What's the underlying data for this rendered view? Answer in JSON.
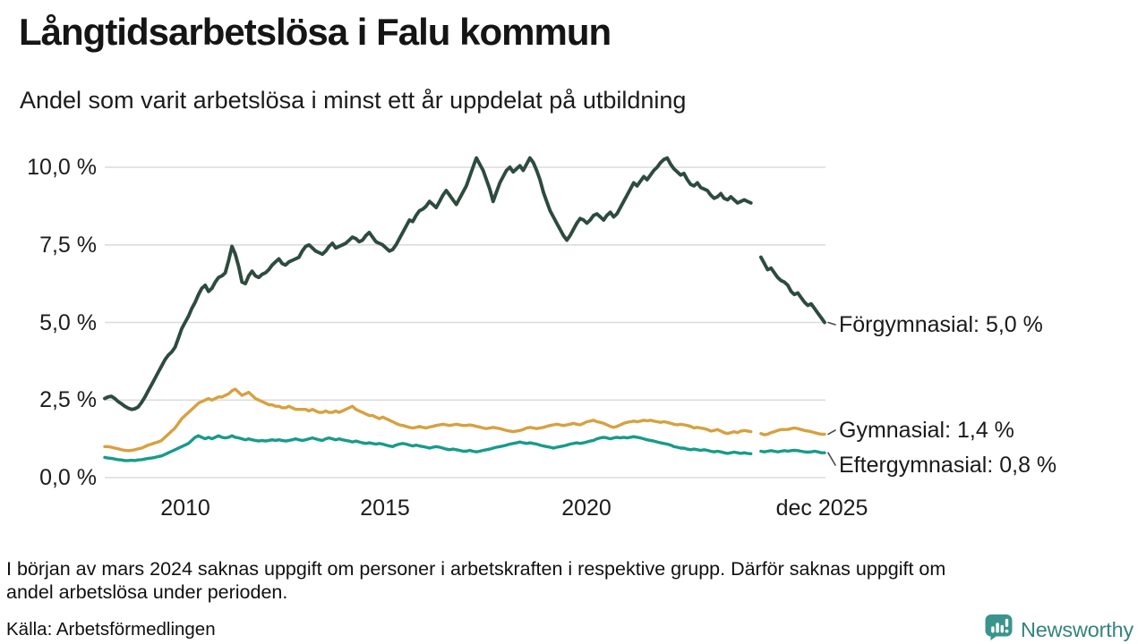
{
  "header": {
    "title": "Långtidsarbetslösa i Falu kommun",
    "subtitle": "Andel som varit arbetslösa i minst ett år uppdelat på utbildning"
  },
  "chart_data": {
    "type": "line",
    "title": "Långtidsarbetslösa i Falu kommun",
    "subtitle": "Andel som varit arbetslösa i minst ett år uppdelat på utbildning",
    "unit": "%",
    "frequency": "monthly",
    "x_start_month": "2008-01",
    "x_end_month": "2025-12",
    "missing_data_months": [
      "2024-03",
      "2024-04"
    ],
    "grid": "horizontal",
    "ylim": [
      0,
      10.5
    ],
    "y_ticks": [
      {
        "value": 0,
        "label": "0,0 %"
      },
      {
        "value": 2.5,
        "label": "2,5 %"
      },
      {
        "value": 5,
        "label": "5,0 %"
      },
      {
        "value": 7.5,
        "label": "7,5 %"
      },
      {
        "value": 10,
        "label": "10,0 %"
      }
    ],
    "x_ticks": [
      {
        "month_index": 24,
        "label": "2010"
      },
      {
        "month_index": 84,
        "label": "2015"
      },
      {
        "month_index": 144,
        "label": "2020"
      },
      {
        "month_index": 215,
        "label": "dec 2025"
      }
    ],
    "series": [
      {
        "name": "Förgymnasial",
        "color": "#2d4b3f",
        "end_value": 5.0,
        "end_label": "Förgymnasial: 5,0 %",
        "values": [
          2.55,
          2.6,
          2.62,
          2.55,
          2.45,
          2.38,
          2.3,
          2.24,
          2.2,
          2.22,
          2.28,
          2.42,
          2.6,
          2.8,
          3.0,
          3.2,
          3.4,
          3.6,
          3.8,
          3.95,
          4.05,
          4.2,
          4.5,
          4.8,
          5.0,
          5.2,
          5.45,
          5.65,
          5.9,
          6.1,
          6.2,
          6.0,
          6.1,
          6.3,
          6.45,
          6.5,
          6.6,
          7.0,
          7.45,
          7.2,
          6.8,
          6.3,
          6.25,
          6.5,
          6.65,
          6.5,
          6.45,
          6.55,
          6.6,
          6.7,
          6.85,
          6.95,
          7.05,
          6.9,
          6.85,
          6.95,
          7.0,
          7.05,
          7.1,
          7.3,
          7.45,
          7.5,
          7.4,
          7.3,
          7.25,
          7.2,
          7.3,
          7.45,
          7.55,
          7.4,
          7.45,
          7.5,
          7.55,
          7.65,
          7.75,
          7.7,
          7.6,
          7.65,
          7.8,
          7.9,
          7.75,
          7.6,
          7.55,
          7.5,
          7.4,
          7.3,
          7.35,
          7.5,
          7.7,
          7.9,
          8.1,
          8.3,
          8.25,
          8.45,
          8.6,
          8.65,
          8.75,
          8.9,
          8.8,
          8.7,
          8.9,
          9.1,
          9.25,
          9.1,
          8.95,
          8.8,
          9.0,
          9.2,
          9.4,
          9.7,
          10.0,
          10.3,
          10.1,
          9.9,
          9.6,
          9.3,
          8.9,
          9.2,
          9.5,
          9.7,
          9.9,
          10.0,
          9.85,
          9.95,
          10.05,
          9.9,
          10.1,
          10.3,
          10.15,
          9.9,
          9.6,
          9.2,
          8.9,
          8.6,
          8.4,
          8.2,
          8.0,
          7.8,
          7.65,
          7.8,
          8.0,
          8.2,
          8.35,
          8.3,
          8.2,
          8.3,
          8.45,
          8.5,
          8.4,
          8.3,
          8.45,
          8.55,
          8.4,
          8.5,
          8.7,
          8.9,
          9.1,
          9.3,
          9.5,
          9.4,
          9.55,
          9.7,
          9.6,
          9.75,
          9.9,
          10.0,
          10.15,
          10.25,
          10.3,
          10.1,
          9.95,
          9.85,
          9.75,
          9.8,
          9.6,
          9.45,
          9.4,
          9.5,
          9.35,
          9.3,
          9.25,
          9.1,
          9.0,
          9.05,
          9.15,
          9.0,
          8.95,
          9.05,
          8.95,
          8.85,
          8.9,
          8.95,
          8.9,
          8.85,
          null,
          null,
          7.1,
          6.9,
          6.7,
          6.75,
          6.6,
          6.45,
          6.35,
          6.3,
          6.2,
          6.0,
          5.9,
          5.95,
          5.8,
          5.65,
          5.55,
          5.6,
          5.45,
          5.3,
          5.15,
          5.0
        ]
      },
      {
        "name": "Gymnasial",
        "color": "#d7a13f",
        "end_value": 1.4,
        "end_label": "Gymnasial: 1,4 %",
        "values": [
          1.0,
          1.0,
          0.98,
          0.95,
          0.93,
          0.9,
          0.88,
          0.87,
          0.88,
          0.9,
          0.93,
          0.95,
          1.0,
          1.05,
          1.08,
          1.12,
          1.15,
          1.2,
          1.3,
          1.4,
          1.5,
          1.6,
          1.75,
          1.9,
          2.0,
          2.1,
          2.2,
          2.3,
          2.4,
          2.45,
          2.5,
          2.55,
          2.5,
          2.55,
          2.6,
          2.6,
          2.65,
          2.7,
          2.8,
          2.85,
          2.75,
          2.65,
          2.7,
          2.75,
          2.65,
          2.55,
          2.5,
          2.45,
          2.4,
          2.35,
          2.35,
          2.3,
          2.3,
          2.25,
          2.25,
          2.3,
          2.25,
          2.2,
          2.2,
          2.2,
          2.2,
          2.15,
          2.2,
          2.15,
          2.1,
          2.1,
          2.15,
          2.1,
          2.1,
          2.15,
          2.1,
          2.15,
          2.2,
          2.25,
          2.3,
          2.2,
          2.15,
          2.1,
          2.05,
          2.0,
          2.0,
          1.95,
          1.9,
          1.95,
          1.9,
          1.85,
          1.8,
          1.75,
          1.7,
          1.68,
          1.65,
          1.62,
          1.6,
          1.62,
          1.65,
          1.62,
          1.6,
          1.63,
          1.65,
          1.68,
          1.7,
          1.72,
          1.7,
          1.68,
          1.7,
          1.72,
          1.7,
          1.68,
          1.68,
          1.7,
          1.68,
          1.65,
          1.63,
          1.6,
          1.58,
          1.6,
          1.62,
          1.6,
          1.58,
          1.55,
          1.52,
          1.5,
          1.48,
          1.5,
          1.52,
          1.55,
          1.6,
          1.62,
          1.6,
          1.58,
          1.6,
          1.62,
          1.65,
          1.68,
          1.7,
          1.72,
          1.7,
          1.68,
          1.7,
          1.72,
          1.75,
          1.72,
          1.7,
          1.75,
          1.8,
          1.82,
          1.85,
          1.8,
          1.78,
          1.75,
          1.7,
          1.65,
          1.62,
          1.65,
          1.7,
          1.75,
          1.78,
          1.8,
          1.82,
          1.8,
          1.82,
          1.85,
          1.83,
          1.85,
          1.82,
          1.8,
          1.78,
          1.8,
          1.78,
          1.75,
          1.72,
          1.7,
          1.72,
          1.7,
          1.68,
          1.65,
          1.6,
          1.62,
          1.6,
          1.58,
          1.55,
          1.5,
          1.52,
          1.55,
          1.5,
          1.45,
          1.42,
          1.45,
          1.48,
          1.45,
          1.5,
          1.52,
          1.5,
          1.48,
          null,
          null,
          1.42,
          1.38,
          1.4,
          1.45,
          1.48,
          1.52,
          1.55,
          1.55,
          1.55,
          1.58,
          1.6,
          1.58,
          1.55,
          1.52,
          1.5,
          1.48,
          1.45,
          1.42,
          1.4,
          1.4
        ]
      },
      {
        "name": "Eftergymnasial",
        "color": "#189b8a",
        "end_value": 0.8,
        "end_label": "Eftergymnasial: 0,8 %",
        "values": [
          0.65,
          0.63,
          0.62,
          0.6,
          0.58,
          0.57,
          0.55,
          0.55,
          0.56,
          0.55,
          0.57,
          0.58,
          0.6,
          0.62,
          0.63,
          0.65,
          0.68,
          0.7,
          0.75,
          0.8,
          0.85,
          0.9,
          0.95,
          1.0,
          1.05,
          1.1,
          1.2,
          1.3,
          1.35,
          1.3,
          1.25,
          1.3,
          1.25,
          1.3,
          1.35,
          1.3,
          1.28,
          1.3,
          1.35,
          1.3,
          1.28,
          1.25,
          1.22,
          1.25,
          1.22,
          1.2,
          1.18,
          1.2,
          1.18,
          1.2,
          1.22,
          1.2,
          1.22,
          1.2,
          1.18,
          1.2,
          1.22,
          1.25,
          1.22,
          1.2,
          1.22,
          1.25,
          1.28,
          1.25,
          1.22,
          1.2,
          1.25,
          1.28,
          1.25,
          1.22,
          1.25,
          1.22,
          1.2,
          1.18,
          1.15,
          1.18,
          1.15,
          1.12,
          1.1,
          1.12,
          1.1,
          1.08,
          1.1,
          1.08,
          1.05,
          1.02,
          1.0,
          1.05,
          1.08,
          1.1,
          1.08,
          1.05,
          1.02,
          1.05,
          1.02,
          1.0,
          0.98,
          0.95,
          0.98,
          1.0,
          0.98,
          0.95,
          0.92,
          0.9,
          0.92,
          0.9,
          0.88,
          0.85,
          0.85,
          0.88,
          0.85,
          0.83,
          0.85,
          0.88,
          0.9,
          0.92,
          0.95,
          0.98,
          1.0,
          1.02,
          1.05,
          1.08,
          1.1,
          1.12,
          1.15,
          1.12,
          1.1,
          1.12,
          1.1,
          1.08,
          1.05,
          1.02,
          1.0,
          0.98,
          0.95,
          0.98,
          1.0,
          1.02,
          1.05,
          1.08,
          1.1,
          1.12,
          1.1,
          1.12,
          1.15,
          1.18,
          1.2,
          1.25,
          1.28,
          1.3,
          1.28,
          1.25,
          1.28,
          1.3,
          1.28,
          1.3,
          1.28,
          1.3,
          1.32,
          1.3,
          1.28,
          1.25,
          1.22,
          1.2,
          1.18,
          1.15,
          1.12,
          1.1,
          1.08,
          1.05,
          1.0,
          0.98,
          0.95,
          0.95,
          0.92,
          0.9,
          0.92,
          0.9,
          0.88,
          0.9,
          0.88,
          0.85,
          0.83,
          0.85,
          0.83,
          0.8,
          0.78,
          0.8,
          0.82,
          0.8,
          0.78,
          0.8,
          0.78,
          0.77,
          null,
          null,
          0.85,
          0.83,
          0.85,
          0.87,
          0.85,
          0.83,
          0.85,
          0.87,
          0.85,
          0.87,
          0.88,
          0.87,
          0.85,
          0.83,
          0.82,
          0.83,
          0.85,
          0.83,
          0.8,
          0.8
        ]
      }
    ]
  },
  "footnote_lines": [
    "I början av mars 2024 saknas uppgift om personer i arbetskraften i respektive grupp. Därför saknas uppgift om",
    "andel arbetslösa under perioden."
  ],
  "source": "Källa: Arbetsförmedlingen",
  "branding": {
    "icon": "newsworthy-logo",
    "wordmark": "Newsworthy",
    "color": "#35837d"
  }
}
